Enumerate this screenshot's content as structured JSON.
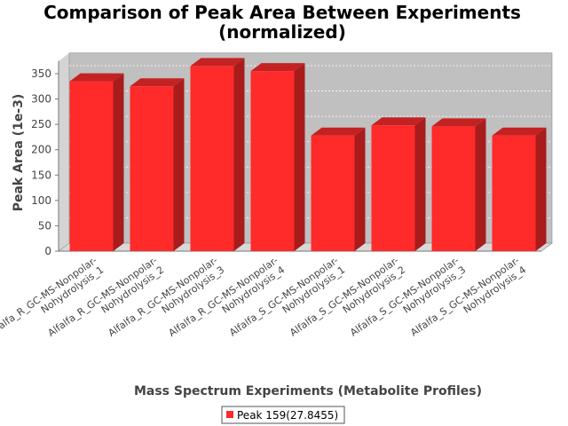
{
  "chart_data": {
    "type": "bar",
    "title": "Comparison of Peak Area Between Experiments",
    "subtitle": "(normalized)",
    "xlabel": "Mass Spectrum Experiments (Metabolite Profiles)",
    "ylabel": "Peak Area (1e-3)",
    "ylim": [
      0,
      375
    ],
    "yticks": [
      "0",
      "50",
      "100",
      "150",
      "200",
      "250",
      "300",
      "350"
    ],
    "grid": true,
    "legend_position": "bottom",
    "categories": [
      [
        "Alfalfa_R_GC-MS-Nonpolar-",
        "Nohydrolysis_1"
      ],
      [
        "Alfalfa_R_GC-MS-Nonpolar-",
        "Nohydrolysis_2"
      ],
      [
        "Alfalfa_R_GC-MS-Nonpolar-",
        "Nohydrolysis_3"
      ],
      [
        "Alfalfa_R_GC-MS-Nonpolar-",
        "Nohydrolysis_4"
      ],
      [
        "Alfalfa_S_GC-MS-Nonpolar-",
        "Nohydrolysis_1"
      ],
      [
        "Alfalfa_S_GC-MS-Nonpolar-",
        "Nohydrolysis_2"
      ],
      [
        "Alfalfa_S_GC-MS-Nonpolar-",
        "Nohydrolysis_3"
      ],
      [
        "Alfalfa_S_GC-MS-Nonpolar-",
        "Nohydrolysis_4"
      ]
    ],
    "series": [
      {
        "name": "Peak 159(27.8455)",
        "color": "#ff2a2a",
        "values": [
          335,
          325,
          365,
          355,
          228,
          248,
          246,
          228
        ]
      }
    ]
  }
}
